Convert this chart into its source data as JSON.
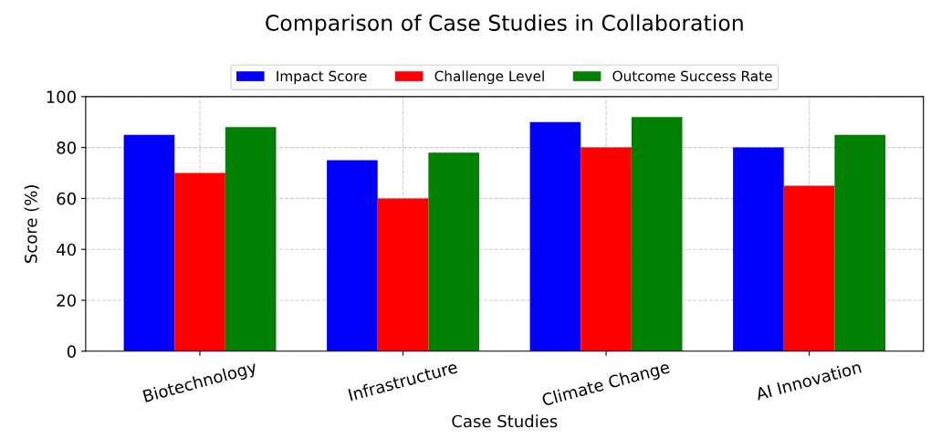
{
  "chart_data": {
    "type": "bar",
    "title": "Comparison of Case Studies in Collaboration",
    "xlabel": "Case Studies",
    "ylabel": "Score (%)",
    "categories": [
      "Biotechnology",
      "Infrastructure",
      "Climate Change",
      "AI Innovation"
    ],
    "series": [
      {
        "name": "Impact Score",
        "color": "#0000ff",
        "values": [
          85,
          75,
          90,
          80
        ]
      },
      {
        "name": "Challenge Level",
        "color": "#ff0000",
        "values": [
          70,
          60,
          80,
          65
        ]
      },
      {
        "name": "Outcome Success Rate",
        "color": "#008000",
        "values": [
          88,
          78,
          92,
          85
        ]
      }
    ],
    "ylim": [
      0,
      100
    ],
    "yticks": [
      0,
      20,
      40,
      60,
      80,
      100
    ],
    "grid": true,
    "legend": "top"
  }
}
